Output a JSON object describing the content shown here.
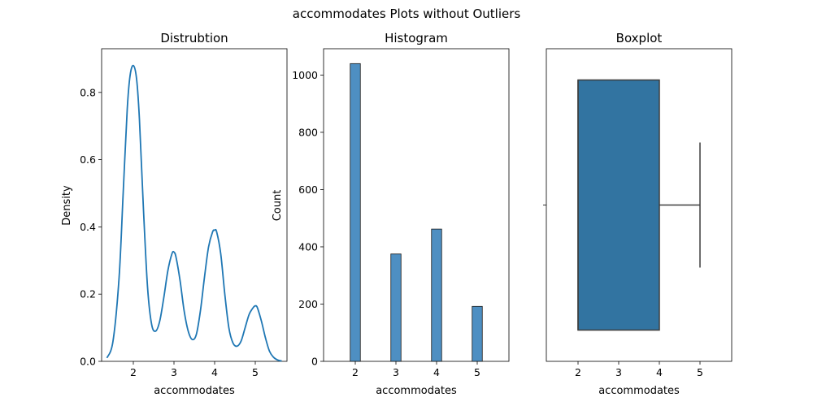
{
  "suptitle": "accommodates Plots without Outliers",
  "colors": {
    "kde_line": "#1f77b4",
    "hist_fill": "#4e8fc2",
    "hist_edge": "#1a1a1a",
    "box_fill": "#3274a1",
    "box_edge": "#3d3d3d"
  },
  "chart_data": [
    {
      "type": "line",
      "title": "Distrubtion",
      "xlabel": "accommodates",
      "ylabel": "Density",
      "xlim": [
        1.22,
        5.78
      ],
      "ylim": [
        0,
        0.93
      ],
      "xticks": [
        2,
        3,
        4,
        5
      ],
      "yticks": [
        0.0,
        0.2,
        0.4,
        0.6,
        0.8
      ],
      "ytick_labels": [
        "0.0",
        "0.2",
        "0.4",
        "0.6",
        "0.8"
      ],
      "series": [
        {
          "x": [
            1.35,
            1.5,
            1.65,
            1.75,
            1.85,
            1.92,
            2.0,
            2.08,
            2.15,
            2.25,
            2.35,
            2.45,
            2.55,
            2.65,
            2.75,
            2.85,
            2.95,
            3.0,
            3.05,
            3.15,
            3.25,
            3.35,
            3.45,
            3.55,
            3.65,
            3.75,
            3.85,
            3.95,
            4.0,
            4.05,
            4.15,
            4.25,
            4.35,
            4.45,
            4.55,
            4.65,
            4.75,
            4.85,
            4.95,
            5.0,
            5.05,
            5.15,
            5.25,
            5.35,
            5.45,
            5.55,
            5.65
          ],
          "y": [
            0.01,
            0.06,
            0.25,
            0.5,
            0.75,
            0.85,
            0.88,
            0.84,
            0.72,
            0.45,
            0.22,
            0.11,
            0.09,
            0.12,
            0.19,
            0.27,
            0.32,
            0.325,
            0.31,
            0.24,
            0.15,
            0.09,
            0.065,
            0.08,
            0.15,
            0.25,
            0.34,
            0.385,
            0.39,
            0.385,
            0.32,
            0.2,
            0.1,
            0.055,
            0.045,
            0.06,
            0.1,
            0.14,
            0.16,
            0.165,
            0.16,
            0.12,
            0.07,
            0.03,
            0.012,
            0.004,
            0.001
          ]
        }
      ]
    },
    {
      "type": "bar",
      "title": "Histogram",
      "xlabel": "accommodates",
      "ylabel": "Count",
      "xlim": [
        1.22,
        5.78
      ],
      "ylim": [
        0,
        1092
      ],
      "xticks": [
        2,
        3,
        4,
        5
      ],
      "yticks": [
        0,
        200,
        400,
        600,
        800,
        1000
      ],
      "ytick_labels": [
        "0",
        "200",
        "400",
        "600",
        "800",
        "1000"
      ],
      "bin_width": 0.25,
      "bars": [
        {
          "x": 2,
          "value": 1040
        },
        {
          "x": 3,
          "value": 375
        },
        {
          "x": 4,
          "value": 462
        },
        {
          "x": 5,
          "value": 192
        }
      ]
    },
    {
      "type": "box",
      "title": "Boxplot",
      "xlabel": "accommodates",
      "ylabel": "",
      "xlim": [
        1.22,
        5.78
      ],
      "xticks": [
        2,
        3,
        4,
        5
      ],
      "min": 2,
      "q1": 2,
      "median": 2,
      "q3": 4,
      "max": 5
    }
  ]
}
